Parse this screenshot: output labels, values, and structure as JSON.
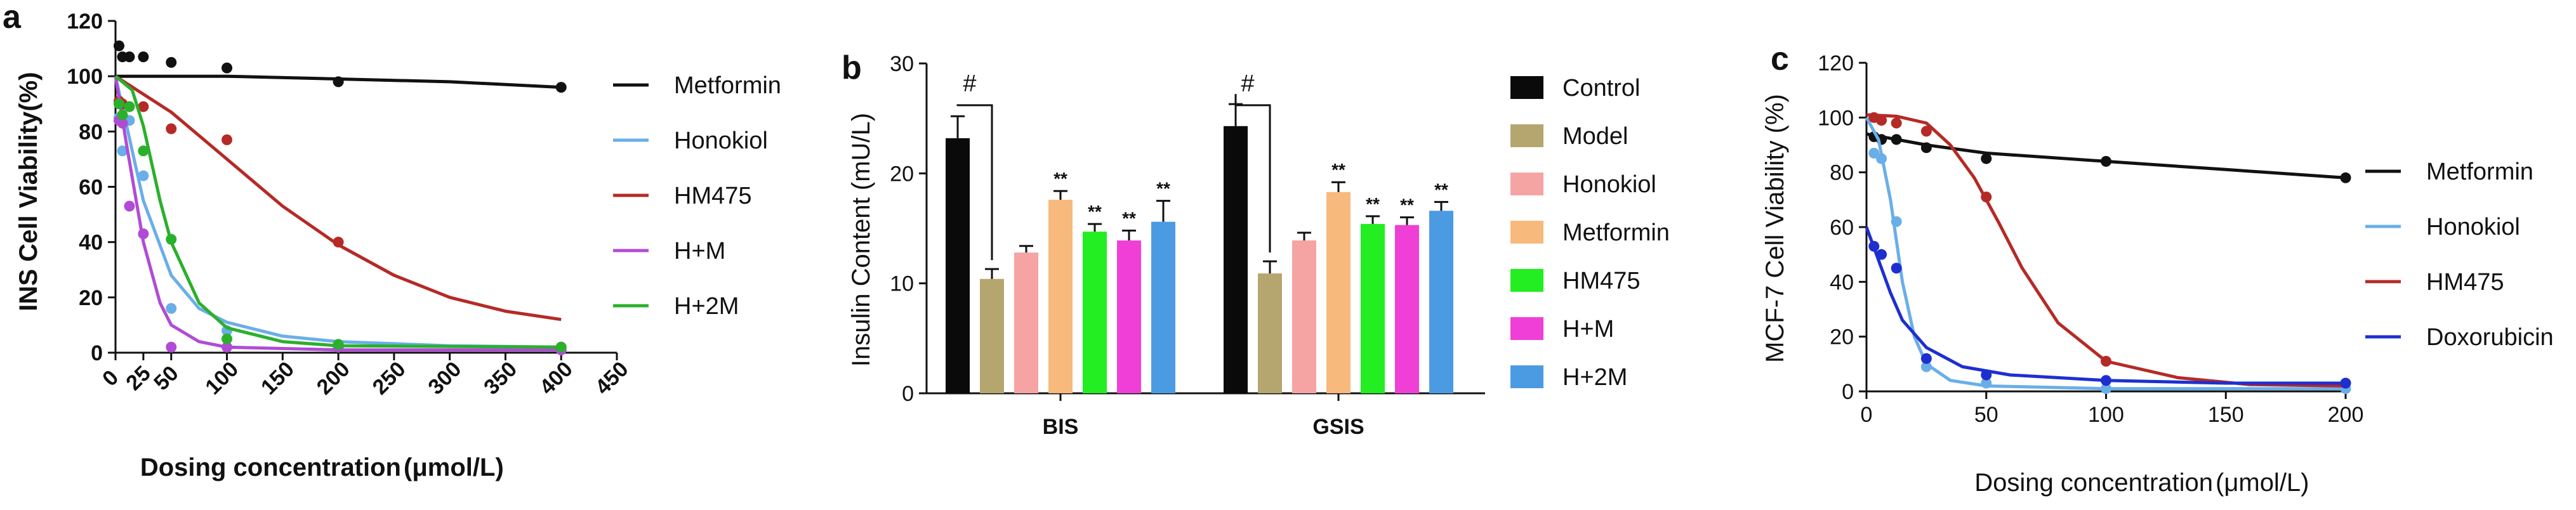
{
  "chart_data": [
    {
      "panel": "a",
      "type": "scatter",
      "xlabel": "Dosing concentration",
      "xlabel_unit": "(μmol/L)",
      "ylabel": "INS Cell Viability(%)",
      "xlim": [
        0,
        450
      ],
      "ylim": [
        0,
        120
      ],
      "xticks": [
        0,
        25,
        50,
        100,
        150,
        200,
        250,
        300,
        350,
        400,
        450
      ],
      "yticks": [
        0,
        20,
        40,
        60,
        80,
        100,
        120
      ],
      "xtick_labels": [
        "0",
        "25",
        "50",
        "100",
        "150",
        "200",
        "250",
        "300",
        "350",
        "400",
        "450"
      ],
      "ytick_labels": [
        "0",
        "20",
        "40",
        "60",
        "80",
        "100",
        "120"
      ],
      "legend_position": "right",
      "series": [
        {
          "name": "Metformin",
          "color": "#111111",
          "points": [
            [
              3.125,
              111
            ],
            [
              6.25,
              107
            ],
            [
              12.5,
              107
            ],
            [
              25,
              107
            ],
            [
              50,
              105
            ],
            [
              100,
              103
            ],
            [
              200,
              98
            ],
            [
              400,
              96
            ]
          ],
          "curve": [
            [
              0,
              100
            ],
            [
              100,
              100
            ],
            [
              200,
              99
            ],
            [
              300,
              98
            ],
            [
              400,
              96
            ]
          ]
        },
        {
          "name": "Honokiol",
          "color": "#6aaee8",
          "points": [
            [
              3.125,
              85
            ],
            [
              6.25,
              73
            ],
            [
              12.5,
              84
            ],
            [
              25,
              64
            ],
            [
              50,
              16
            ],
            [
              100,
              8
            ],
            [
              200,
              3
            ],
            [
              400,
              2
            ]
          ],
          "curve": [
            [
              0,
              100
            ],
            [
              10,
              82
            ],
            [
              25,
              55
            ],
            [
              50,
              28
            ],
            [
              75,
              16
            ],
            [
              100,
              11
            ],
            [
              150,
              6
            ],
            [
              200,
              4
            ],
            [
              300,
              2.5
            ],
            [
              400,
              2
            ]
          ]
        },
        {
          "name": "HM475",
          "color": "#b52a26",
          "points": [
            [
              3.125,
              91
            ],
            [
              6.25,
              90
            ],
            [
              12.5,
              89
            ],
            [
              25,
              89
            ],
            [
              50,
              81
            ],
            [
              100,
              77
            ],
            [
              200,
              40
            ],
            [
              400,
              2
            ]
          ],
          "curve": [
            [
              0,
              100
            ],
            [
              50,
              87
            ],
            [
              100,
              70
            ],
            [
              150,
              53
            ],
            [
              200,
              39
            ],
            [
              250,
              28
            ],
            [
              300,
              20
            ],
            [
              350,
              15
            ],
            [
              400,
              12
            ]
          ]
        },
        {
          "name": "H+M",
          "color": "#b14bd6",
          "points": [
            [
              3.125,
              84
            ],
            [
              6.25,
              83
            ],
            [
              12.5,
              53
            ],
            [
              25,
              43
            ],
            [
              50,
              2
            ],
            [
              100,
              2
            ],
            [
              200,
              2
            ],
            [
              400,
              1
            ]
          ],
          "curve": [
            [
              0,
              100
            ],
            [
              10,
              75
            ],
            [
              25,
              40
            ],
            [
              40,
              18
            ],
            [
              50,
              10
            ],
            [
              75,
              4
            ],
            [
              100,
              2
            ],
            [
              200,
              1
            ],
            [
              400,
              1
            ]
          ]
        },
        {
          "name": "H+2M",
          "color": "#2bb02b",
          "points": [
            [
              3.125,
              90
            ],
            [
              6.25,
              86
            ],
            [
              12.5,
              89
            ],
            [
              25,
              73
            ],
            [
              50,
              41
            ],
            [
              100,
              5
            ],
            [
              200,
              3
            ],
            [
              400,
              2
            ]
          ],
          "curve": [
            [
              0,
              100
            ],
            [
              15,
              95
            ],
            [
              25,
              82
            ],
            [
              40,
              55
            ],
            [
              50,
              40
            ],
            [
              75,
              18
            ],
            [
              100,
              9
            ],
            [
              150,
              4
            ],
            [
              200,
              2.5
            ],
            [
              400,
              2
            ]
          ]
        }
      ]
    },
    {
      "panel": "b",
      "type": "bar",
      "ylabel": "Insulin Content (mU/L)",
      "ylim": [
        0,
        30
      ],
      "yticks": [
        0,
        10,
        20,
        30
      ],
      "ytick_labels": [
        "0",
        "10",
        "20",
        "30"
      ],
      "categories": [
        "BIS",
        "GSIS"
      ],
      "legend_position": "right",
      "series": [
        {
          "name": "Control",
          "color": "#0a0a0a",
          "values": [
            23.2,
            24.3
          ],
          "errors": [
            2.0,
            2.0
          ],
          "sig": [
            "",
            ""
          ]
        },
        {
          "name": "Model",
          "color": "#b5a56f",
          "values": [
            10.4,
            10.9
          ],
          "errors": [
            0.9,
            1.1
          ],
          "sig": [
            "",
            ""
          ]
        },
        {
          "name": "Honokiol",
          "color": "#f5a3a3",
          "values": [
            12.8,
            13.9
          ],
          "errors": [
            0.6,
            0.7
          ],
          "sig": [
            "",
            ""
          ]
        },
        {
          "name": "Metformin",
          "color": "#f7b97c",
          "values": [
            17.6,
            18.3
          ],
          "errors": [
            0.8,
            0.9
          ],
          "sig": [
            "**",
            "**"
          ]
        },
        {
          "name": "HM475",
          "color": "#22ee22",
          "values": [
            14.7,
            15.4
          ],
          "errors": [
            0.7,
            0.7
          ],
          "sig": [
            "**",
            "**"
          ]
        },
        {
          "name": "H+M",
          "color": "#f03fd6",
          "values": [
            13.9,
            15.3
          ],
          "errors": [
            0.9,
            0.7
          ],
          "sig": [
            "**",
            "**"
          ]
        },
        {
          "name": "H+2M",
          "color": "#4b9be3",
          "values": [
            15.6,
            16.6
          ],
          "errors": [
            1.9,
            0.8
          ],
          "sig": [
            "**",
            "**"
          ]
        }
      ],
      "annotations": [
        {
          "text": "#",
          "compare": [
            "Control",
            "Model"
          ],
          "category": "BIS"
        },
        {
          "text": "#",
          "compare": [
            "Control",
            "Model"
          ],
          "category": "GSIS"
        }
      ]
    },
    {
      "panel": "c",
      "type": "scatter",
      "xlabel": "Dosing concentration",
      "xlabel_unit": "(μmol/L)",
      "ylabel": "MCF-7 Cell Viability (%)",
      "xlim": [
        0,
        200
      ],
      "ylim": [
        0,
        120
      ],
      "xticks": [
        0,
        50,
        100,
        150,
        200
      ],
      "yticks": [
        0,
        20,
        40,
        60,
        80,
        100,
        120
      ],
      "xtick_labels": [
        "0",
        "50",
        "100",
        "150",
        "200"
      ],
      "ytick_labels": [
        "0",
        "20",
        "40",
        "60",
        "80",
        "100",
        "120"
      ],
      "legend_position": "right",
      "series": [
        {
          "name": "Metformin",
          "color": "#111111",
          "points": [
            [
              3.125,
              93
            ],
            [
              6.25,
              92
            ],
            [
              12.5,
              92
            ],
            [
              25,
              89
            ],
            [
              50,
              85
            ],
            [
              100,
              84
            ],
            [
              200,
              78
            ]
          ],
          "curve": [
            [
              0,
              94
            ],
            [
              25,
              90
            ],
            [
              50,
              87
            ],
            [
              100,
              84
            ],
            [
              150,
              81
            ],
            [
              200,
              78
            ]
          ]
        },
        {
          "name": "Honokiol",
          "color": "#6aaee8",
          "points": [
            [
              3.125,
              87
            ],
            [
              6.25,
              85
            ],
            [
              12.5,
              62
            ],
            [
              25,
              9
            ],
            [
              50,
              3
            ],
            [
              100,
              1
            ],
            [
              200,
              1
            ]
          ],
          "curve": [
            [
              0,
              100
            ],
            [
              5,
              92
            ],
            [
              10,
              70
            ],
            [
              15,
              40
            ],
            [
              20,
              20
            ],
            [
              25,
              10
            ],
            [
              35,
              4
            ],
            [
              50,
              2
            ],
            [
              100,
              1
            ],
            [
              200,
              1
            ]
          ]
        },
        {
          "name": "HM475",
          "color": "#b52a26",
          "points": [
            [
              3.125,
              100
            ],
            [
              6.25,
              99
            ],
            [
              12.5,
              98
            ],
            [
              25,
              95
            ],
            [
              50,
              71
            ],
            [
              100,
              11
            ],
            [
              200,
              3
            ]
          ],
          "curve": [
            [
              0,
              101
            ],
            [
              12.5,
              100.5
            ],
            [
              25,
              98
            ],
            [
              35,
              90
            ],
            [
              45,
              78
            ],
            [
              55,
              62
            ],
            [
              65,
              45
            ],
            [
              80,
              25
            ],
            [
              100,
              11
            ],
            [
              130,
              5
            ],
            [
              160,
              2.5
            ],
            [
              200,
              2
            ]
          ]
        },
        {
          "name": "Doxorubicin",
          "color": "#1e2fd0",
          "points": [
            [
              3.125,
              53
            ],
            [
              6.25,
              50
            ],
            [
              12.5,
              45
            ],
            [
              25,
              12
            ],
            [
              50,
              6
            ],
            [
              100,
              4
            ],
            [
              200,
              3
            ]
          ],
          "curve": [
            [
              0,
              60
            ],
            [
              5,
              48
            ],
            [
              10,
              36
            ],
            [
              15,
              26
            ],
            [
              25,
              16
            ],
            [
              40,
              9
            ],
            [
              60,
              6
            ],
            [
              100,
              4
            ],
            [
              150,
              3
            ],
            [
              200,
              3
            ]
          ]
        }
      ]
    }
  ]
}
